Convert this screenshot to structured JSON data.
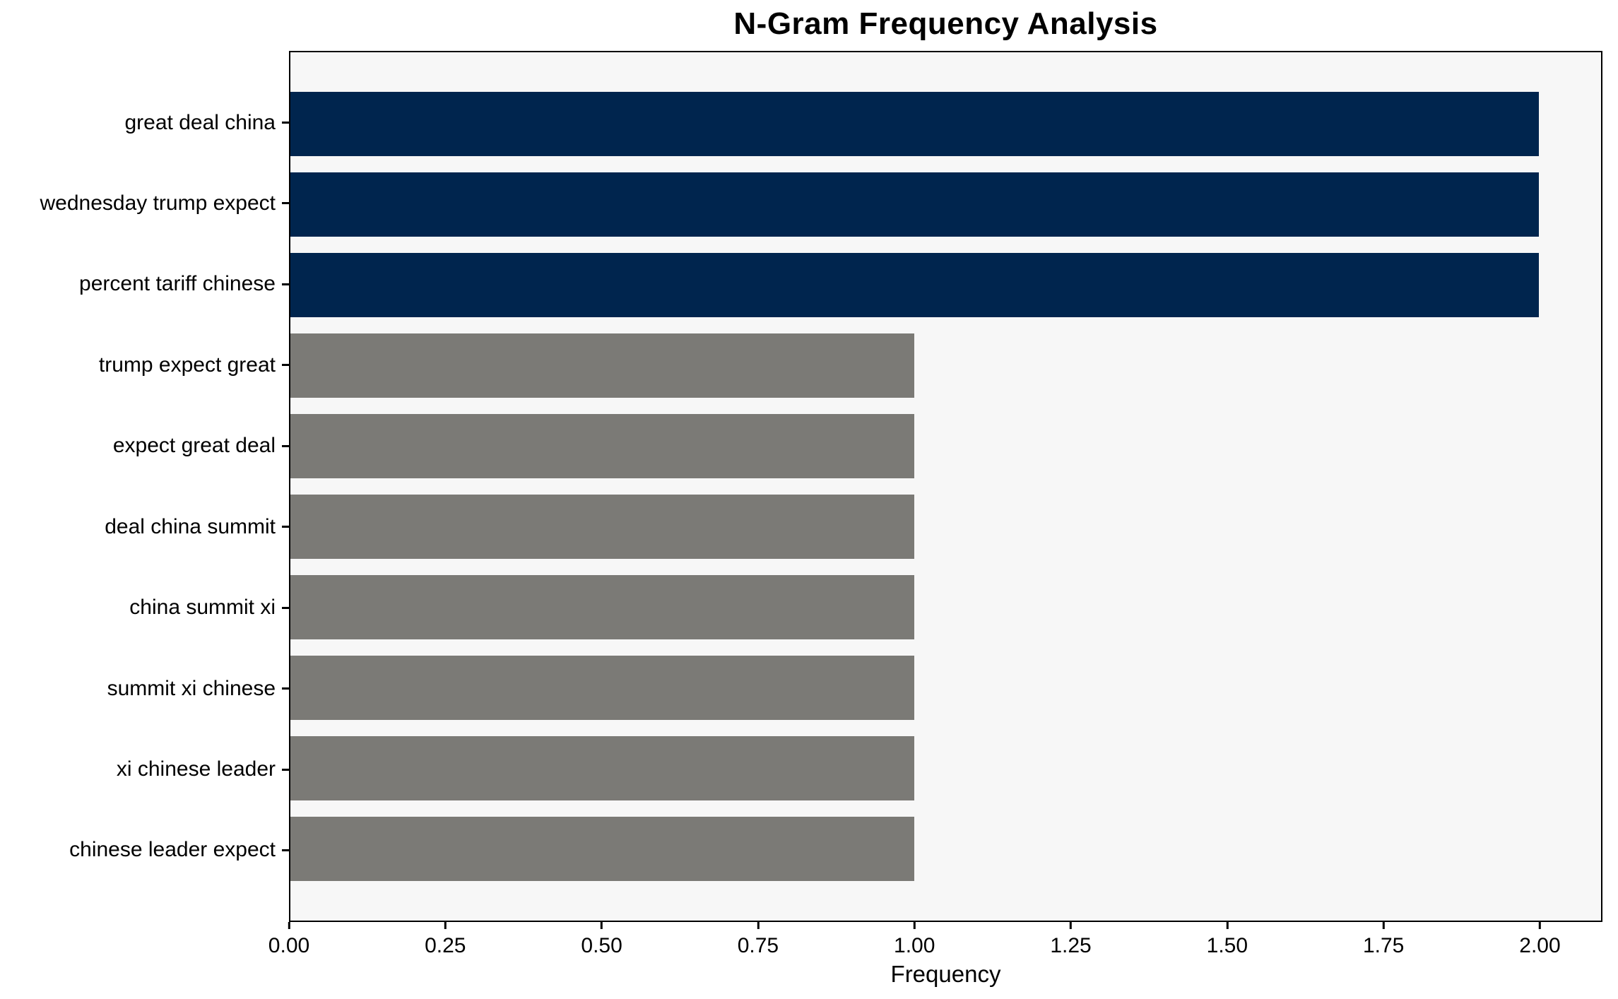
{
  "chart_data": {
    "type": "bar",
    "orientation": "horizontal",
    "title": "N-Gram Frequency Analysis",
    "xlabel": "Frequency",
    "ylabel": "",
    "categories": [
      "great deal china",
      "wednesday trump expect",
      "percent tariff chinese",
      "trump expect great",
      "expect great deal",
      "deal china summit",
      "china summit xi",
      "summit xi chinese",
      "xi chinese leader",
      "chinese leader expect"
    ],
    "values": [
      2,
      2,
      2,
      1,
      1,
      1,
      1,
      1,
      1,
      1
    ],
    "bar_colors": [
      "#00254e",
      "#00254e",
      "#00254e",
      "#7b7a76",
      "#7b7a76",
      "#7b7a76",
      "#7b7a76",
      "#7b7a76",
      "#7b7a76",
      "#7b7a76"
    ],
    "xlim": [
      0,
      2.1
    ],
    "xticks": [
      "0.00",
      "0.25",
      "0.50",
      "0.75",
      "1.00",
      "1.25",
      "1.50",
      "1.75",
      "2.00"
    ],
    "xtick_values": [
      0,
      0.25,
      0.5,
      0.75,
      1.0,
      1.25,
      1.5,
      1.75,
      2.0
    ],
    "grid": false,
    "legend": null,
    "colors": {
      "highlight": "#00254e",
      "muted": "#7b7a76",
      "plot_background": "#f7f7f7",
      "page_background": "#ffffff",
      "axis": "#000000",
      "text": "#000000"
    }
  }
}
